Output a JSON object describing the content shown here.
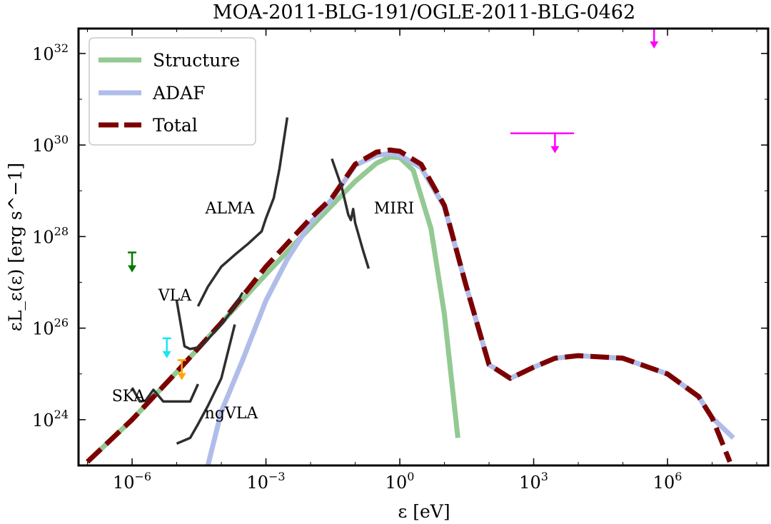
{
  "chart_data": {
    "type": "line",
    "title": "MOA-2011-BLG-191/OGLE-2011-BLG-0462",
    "xlabel": "ε [eV]",
    "ylabel": "εL_ε(ε) [erg s^−1]",
    "x_scale": "log",
    "y_scale": "log",
    "xlim": [
      6.3e-08,
      180000000.0
    ],
    "ylim": [
      1e+23,
      3.5e+32
    ],
    "x_ticks": [
      {
        "value": 1e-06,
        "base": "10",
        "exp": "−6"
      },
      {
        "value": 0.001,
        "base": "10",
        "exp": "−3"
      },
      {
        "value": 1,
        "base": "10",
        "exp": "0"
      },
      {
        "value": 1000.0,
        "base": "10",
        "exp": "3"
      },
      {
        "value": 1000000.0,
        "base": "10",
        "exp": "6"
      }
    ],
    "y_ticks": [
      {
        "value": 1e+24,
        "base": "10",
        "exp": "24"
      },
      {
        "value": 1e+26,
        "base": "10",
        "exp": "26"
      },
      {
        "value": 1e+28,
        "base": "10",
        "exp": "28"
      },
      {
        "value": 1e+30,
        "base": "10",
        "exp": "30"
      },
      {
        "value": 1e+32,
        "base": "10",
        "exp": "32"
      }
    ],
    "legend_position": "top-left",
    "colors": {
      "structure": "#93c993",
      "adaf": "#b0bdea",
      "total": "#7c0000",
      "sensitivity": "#2e2e2e",
      "upper_limit_magenta": "#ff00ff",
      "upper_limit_green": "#007a00",
      "upper_limit_cyan": "#19e6f0",
      "upper_limit_orange": "#ffa500"
    },
    "series": [
      {
        "name": "Structure",
        "style": "solid",
        "x": [
          1e-07,
          1e-06,
          1e-05,
          0.0001,
          0.001,
          0.01,
          0.1,
          0.3,
          0.6,
          1,
          2,
          5,
          10,
          20
        ],
        "y": [
          1.2e+23,
          1e+24,
          1.1e+25,
          1.3e+26,
          1.5e+27,
          1.6e+28,
          1.6e+29,
          4e+29,
          5.5e+29,
          5.3e+29,
          2.8e+29,
          1.5e+28,
          2e+26,
          4e+23
        ]
      },
      {
        "name": "ADAF",
        "style": "solid",
        "x": [
          5e-05,
          0.0001,
          0.0003,
          0.001,
          0.003,
          0.01,
          0.03,
          0.1,
          0.3,
          0.6,
          1,
          3,
          10,
          30,
          100,
          300,
          1000,
          3000,
          10000,
          100000.0,
          1000000.0,
          5000000.0,
          10000000.0,
          30000000.0
        ],
        "y": [
          1e+23,
          1.5e+24,
          2e+25,
          4e+26,
          3.2e+27,
          2e+28,
          6.5e+28,
          3.6e+29,
          6e+29,
          6.5e+29,
          6e+29,
          3.2e+29,
          4.5e+28,
          9e+26,
          1.6e+25,
          8e+24,
          1.4e+25,
          2.2e+25,
          2.5e+25,
          2.2e+25,
          1e+25,
          3.2e+24,
          1.1e+24,
          4e+23
        ]
      },
      {
        "name": "Total",
        "style": "dashed",
        "x": [
          1e-07,
          1e-06,
          1e-05,
          0.0001,
          0.001,
          0.01,
          0.03,
          0.1,
          0.3,
          0.6,
          1,
          3,
          10,
          30,
          100,
          300,
          1000,
          3000,
          10000,
          100000.0,
          1000000.0,
          5000000.0,
          10000000.0,
          25000000.0
        ],
        "y": [
          1.2e+23,
          1e+24,
          1.1e+25,
          1.3e+26,
          2.2e+27,
          2.5e+28,
          7e+28,
          3.8e+29,
          7e+29,
          7.8e+29,
          7.3e+29,
          3.8e+29,
          4.8e+28,
          9e+26,
          1.6e+25,
          8e+24,
          1.4e+25,
          2.2e+25,
          2.5e+25,
          2.2e+25,
          1e+25,
          3.2e+24,
          1.1e+24,
          1.2e+23
        ]
      }
    ],
    "sensitivity_curves": [
      {
        "name": "ALMA",
        "x": [
          3e-05,
          5e-05,
          0.0001,
          0.0002,
          0.0004,
          0.0008,
          0.001,
          0.0015,
          0.002,
          0.003
        ],
        "y": [
          3e+26,
          8e+26,
          2.2e+27,
          4e+27,
          7e+27,
          1.3e+28,
          2.5e+28,
          7e+28,
          3e+29,
          4e+30
        ]
      },
      {
        "name": "MIRI",
        "x": [
          0.03,
          0.05,
          0.07,
          0.08,
          0.09,
          0.1,
          0.15,
          0.2
        ],
        "y": [
          5e+29,
          1.2e+29,
          3e+28,
          2.3e+28,
          4e+28,
          2e+28,
          5e+27,
          2e+27
        ]
      },
      {
        "name": "VLA",
        "x": [
          1e-05,
          1.5e-05,
          2e-05,
          3e-05,
          4e-05,
          6e-05,
          0.0001,
          0.00015,
          0.0002,
          0.0003
        ],
        "y": [
          4e+26,
          4e+25,
          3.5e+25,
          3.8e+25,
          4.5e+25,
          7e+25,
          1.2e+26,
          2e+26,
          3e+26,
          6e+26
        ]
      },
      {
        "name": "SKA",
        "x": [
          1e-06,
          1.5e-06,
          2e-06,
          3e-06,
          5e-06,
          7e-06,
          1e-05,
          1.5e-05,
          2e-05,
          3e-05
        ],
        "y": [
          5e+24,
          2.5e+24,
          2.6e+24,
          4.5e+24,
          2.5e+24,
          2.5e+24,
          2.5e+24,
          2.5e+24,
          2.5e+24,
          6e+24
        ]
      },
      {
        "name": "ngVLA",
        "x": [
          1e-05,
          2e-05,
          3e-05,
          5e-05,
          0.0001,
          0.0002
        ],
        "y": [
          3e+23,
          4e+23,
          8e+23,
          2e+24,
          8e+24,
          1.2e+26
        ]
      }
    ],
    "upper_limits": [
      {
        "color": "magenta",
        "x_range": [
          300000.0,
          800000.0
        ],
        "y": 3.5e+32,
        "arrow_x": 500000.0
      },
      {
        "color": "magenta",
        "x_range": [
          300,
          8000
        ],
        "y": 1.8e+30,
        "arrow_x": 3000
      },
      {
        "color": "green",
        "x": 1e-06,
        "y": 4.5e+27
      },
      {
        "color": "cyan",
        "x": 6e-06,
        "y": 6e+25
      },
      {
        "color": "orange",
        "x": 1.3e-05,
        "y": 2e+25
      }
    ],
    "annotations": [
      "ALMA",
      "MIRI",
      "VLA",
      "SKA",
      "ngVLA"
    ]
  }
}
